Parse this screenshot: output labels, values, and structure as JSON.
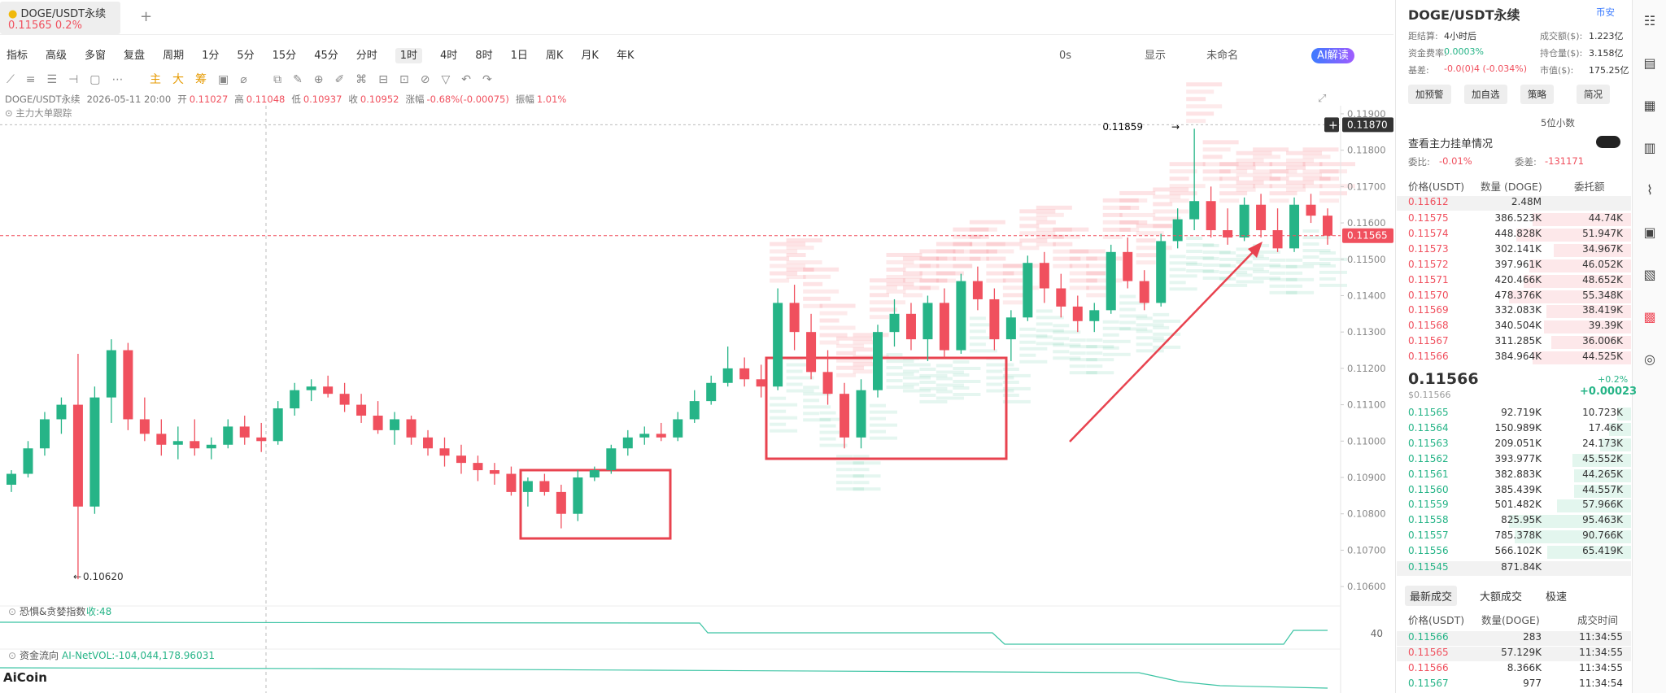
{
  "tab": {
    "title": "DOGE/USDT永续",
    "price": "0.11565",
    "change": "0.2%"
  },
  "toolbar": {
    "left": [
      "指标",
      "高级",
      "多窗",
      "复盘",
      "周期"
    ],
    "periods": [
      "1分",
      "5分",
      "15分",
      "45分",
      "分时",
      "1时",
      "4时",
      "8时",
      "1日",
      "周K",
      "月K",
      "年K"
    ],
    "active": "1时",
    "right": [
      "0s",
      "显示",
      "未命名",
      "AI解读"
    ]
  },
  "info": {
    "symbol": "DOGE/USDT永续",
    "time": "2026-05-11 20:00",
    "fields": [
      [
        "开",
        "0.11027"
      ],
      [
        "高",
        "0.11048"
      ],
      [
        "低",
        "0.10937"
      ],
      [
        "收",
        "0.10952"
      ],
      [
        "涨幅",
        "-0.68%(-0.00075)"
      ],
      [
        "振幅",
        "1.01%"
      ]
    ],
    "tracker": "主力大单跟踪"
  },
  "chart": {
    "type": "candlestick",
    "up_color": "#26b487",
    "down_color": "#f0505e",
    "ylim": [
      0.1056,
      0.1192
    ],
    "yticks": [
      {
        "value": 0.106,
        "label": "0.10600"
      },
      {
        "value": 0.107,
        "label": "0.10700"
      },
      {
        "value": 0.108,
        "label": "0.10800"
      },
      {
        "value": 0.109,
        "label": "0.10900"
      },
      {
        "value": 0.11,
        "label": "0.11000"
      },
      {
        "value": 0.111,
        "label": "0.11100"
      },
      {
        "value": 0.112,
        "label": "0.11200"
      },
      {
        "value": 0.113,
        "label": "0.11300"
      },
      {
        "value": 0.114,
        "label": "0.11400"
      },
      {
        "value": 0.115,
        "label": "0.11500"
      },
      {
        "value": 0.116,
        "label": "0.11600"
      },
      {
        "value": 0.117,
        "label": "0.11700"
      },
      {
        "value": 0.118,
        "label": "0.11800"
      },
      {
        "value": 0.119,
        "label": "0.11900"
      }
    ],
    "current_price": 0.11565,
    "crosshair": {
      "value": 0.1187,
      "label": "0.11870"
    },
    "low_mark": {
      "value": 0.1062,
      "label": "0.10620"
    },
    "candles": [
      [
        0.1088,
        0.1092,
        0.1086,
        0.1091
      ],
      [
        0.1091,
        0.11,
        0.109,
        0.1098
      ],
      [
        0.1098,
        0.1108,
        0.1096,
        0.1106
      ],
      [
        0.1106,
        0.1112,
        0.1102,
        0.111
      ],
      [
        0.111,
        0.1124,
        0.1062,
        0.1082
      ],
      [
        0.1082,
        0.1115,
        0.108,
        0.1112
      ],
      [
        0.1112,
        0.1128,
        0.1105,
        0.1125
      ],
      [
        0.1125,
        0.1127,
        0.1103,
        0.1106
      ],
      [
        0.1106,
        0.1112,
        0.11,
        0.1102
      ],
      [
        0.1102,
        0.1106,
        0.1096,
        0.1099
      ],
      [
        0.1099,
        0.1104,
        0.1095,
        0.11
      ],
      [
        0.11,
        0.1106,
        0.1096,
        0.1098
      ],
      [
        0.1098,
        0.1101,
        0.1095,
        0.1099
      ],
      [
        0.1099,
        0.1106,
        0.1098,
        0.1104
      ],
      [
        0.1104,
        0.1107,
        0.1099,
        0.1101
      ],
      [
        0.1101,
        0.1105,
        0.1097,
        0.11
      ],
      [
        0.11,
        0.1111,
        0.1099,
        0.1109
      ],
      [
        0.1109,
        0.1116,
        0.1107,
        0.1114
      ],
      [
        0.1114,
        0.1117,
        0.1111,
        0.1115
      ],
      [
        0.1115,
        0.1118,
        0.1112,
        0.1113
      ],
      [
        0.1113,
        0.1116,
        0.1108,
        0.111
      ],
      [
        0.111,
        0.1113,
        0.1105,
        0.1107
      ],
      [
        0.1107,
        0.1111,
        0.1102,
        0.1103
      ],
      [
        0.1103,
        0.1108,
        0.1099,
        0.1106
      ],
      [
        0.1106,
        0.1107,
        0.1099,
        0.1101
      ],
      [
        0.1101,
        0.1103,
        0.1096,
        0.1098
      ],
      [
        0.1098,
        0.1101,
        0.1093,
        0.1096
      ],
      [
        0.1096,
        0.1099,
        0.1091,
        0.1094
      ],
      [
        0.1094,
        0.1096,
        0.1089,
        0.1092
      ],
      [
        0.1092,
        0.1094,
        0.1088,
        0.1091
      ],
      [
        0.1091,
        0.1093,
        0.1085,
        0.1086
      ],
      [
        0.1086,
        0.109,
        0.1082,
        0.1089
      ],
      [
        0.1089,
        0.1091,
        0.1085,
        0.1086
      ],
      [
        0.1086,
        0.1088,
        0.1076,
        0.108
      ],
      [
        0.108,
        0.1092,
        0.1078,
        0.109
      ],
      [
        0.109,
        0.1093,
        0.1089,
        0.1092
      ],
      [
        0.1092,
        0.1099,
        0.1091,
        0.1098
      ],
      [
        0.1098,
        0.1103,
        0.1096,
        0.1101
      ],
      [
        0.1101,
        0.1104,
        0.1099,
        0.1102
      ],
      [
        0.1102,
        0.1105,
        0.11,
        0.1101
      ],
      [
        0.1101,
        0.1108,
        0.11,
        0.1106
      ],
      [
        0.1106,
        0.1114,
        0.1105,
        0.1111
      ],
      [
        0.1111,
        0.1118,
        0.111,
        0.1116
      ],
      [
        0.1116,
        0.1126,
        0.1115,
        0.112
      ],
      [
        0.112,
        0.1123,
        0.1115,
        0.1117
      ],
      [
        0.1117,
        0.1121,
        0.1112,
        0.1115
      ],
      [
        0.1115,
        0.1142,
        0.1114,
        0.1138
      ],
      [
        0.1138,
        0.1143,
        0.1125,
        0.113
      ],
      [
        0.113,
        0.1135,
        0.1117,
        0.1119
      ],
      [
        0.1119,
        0.1125,
        0.111,
        0.1113
      ],
      [
        0.1113,
        0.1116,
        0.1098,
        0.1101
      ],
      [
        0.1101,
        0.1117,
        0.1098,
        0.1114
      ],
      [
        0.1114,
        0.1132,
        0.1112,
        0.113
      ],
      [
        0.113,
        0.1139,
        0.1126,
        0.1135
      ],
      [
        0.1135,
        0.1138,
        0.1125,
        0.1128
      ],
      [
        0.1128,
        0.114,
        0.1122,
        0.1138
      ],
      [
        0.1138,
        0.1142,
        0.1123,
        0.1125
      ],
      [
        0.1125,
        0.1146,
        0.1124,
        0.1144
      ],
      [
        0.1144,
        0.1148,
        0.1136,
        0.1139
      ],
      [
        0.1139,
        0.1142,
        0.1125,
        0.1128
      ],
      [
        0.1128,
        0.1136,
        0.1122,
        0.1134
      ],
      [
        0.1134,
        0.1151,
        0.1133,
        0.1149
      ],
      [
        0.1149,
        0.1152,
        0.1138,
        0.1142
      ],
      [
        0.1142,
        0.1146,
        0.1134,
        0.1137
      ],
      [
        0.1137,
        0.114,
        0.113,
        0.1133
      ],
      [
        0.1133,
        0.1138,
        0.113,
        0.1136
      ],
      [
        0.1136,
        0.1154,
        0.1135,
        0.1152
      ],
      [
        0.1152,
        0.1156,
        0.1142,
        0.1144
      ],
      [
        0.1144,
        0.1147,
        0.1136,
        0.1138
      ],
      [
        0.1138,
        0.1157,
        0.1137,
        0.1155
      ],
      [
        0.1155,
        0.1164,
        0.1153,
        0.1161
      ],
      [
        0.1161,
        0.11859,
        0.1158,
        0.1166
      ],
      [
        0.1166,
        0.117,
        0.1156,
        0.1158
      ],
      [
        0.1158,
        0.1164,
        0.1154,
        0.1156
      ],
      [
        0.1156,
        0.1167,
        0.1155,
        0.1165
      ],
      [
        0.1165,
        0.1168,
        0.1156,
        0.1158
      ],
      [
        0.1158,
        0.1164,
        0.1152,
        0.1153
      ],
      [
        0.1153,
        0.1167,
        0.1152,
        0.1165
      ],
      [
        0.1165,
        0.1168,
        0.116,
        0.1162
      ],
      [
        0.1162,
        0.1164,
        0.1154,
        0.11565
      ]
    ]
  },
  "fear_greed": {
    "title": "恐惧&贪婪指数",
    "value": "收:48",
    "tick": "40"
  },
  "fund_flow": {
    "title": "资金流向",
    "value": "AI-NetVOL:-104,044,178.96031"
  },
  "brand": "AiCoin",
  "panel": {
    "title": "DOGE/USDT永续",
    "exchange": "币安",
    "stats": [
      [
        "距结算:",
        "4小时后",
        "成交额($):",
        "1.223亿"
      ],
      [
        "资金费率:",
        "0.0003%",
        "持仓量($):",
        "3.158亿"
      ],
      [
        "基差:",
        "-0.0(0)4 (-0.034%)",
        "市值($):",
        "175.25亿"
      ]
    ],
    "buttons": [
      "加预警",
      "加自选",
      "策略",
      "简况"
    ],
    "decimals": "5位小数",
    "depth_toggle": "查看主力挂单情况",
    "ratio_label": "委比:",
    "ratio": "-0.01%",
    "diff_label": "委差:",
    "diff": "-131171",
    "headers": [
      "价格(USDT)",
      "数量 (DOGE)",
      "委托额"
    ],
    "big_ask": [
      "0.11612",
      "2.48M"
    ],
    "asks": [
      [
        "0.11575",
        "386.523K",
        "44.74K"
      ],
      [
        "0.11574",
        "448.828K",
        "51.947K"
      ],
      [
        "0.11573",
        "302.141K",
        "34.967K"
      ],
      [
        "0.11572",
        "397.961K",
        "46.052K"
      ],
      [
        "0.11571",
        "420.466K",
        "48.652K"
      ],
      [
        "0.11570",
        "478.376K",
        "55.348K"
      ],
      [
        "0.11569",
        "332.083K",
        "38.419K"
      ],
      [
        "0.11568",
        "340.504K",
        "39.39K"
      ],
      [
        "0.11567",
        "311.285K",
        "36.006K"
      ],
      [
        "0.11566",
        "384.964K",
        "44.525K"
      ]
    ],
    "mid": "0.11566",
    "mid_usd": "$0.11566",
    "mid_pct": "+0.2%",
    "mid_chg": "+0.00023",
    "bids": [
      [
        "0.11565",
        "92.719K",
        "10.723K"
      ],
      [
        "0.11564",
        "150.989K",
        "17.46K"
      ],
      [
        "0.11563",
        "209.051K",
        "24.173K"
      ],
      [
        "0.11562",
        "393.977K",
        "45.552K"
      ],
      [
        "0.11561",
        "382.883K",
        "44.265K"
      ],
      [
        "0.11560",
        "385.439K",
        "44.557K"
      ],
      [
        "0.11559",
        "501.482K",
        "57.966K"
      ],
      [
        "0.11558",
        "825.95K",
        "95.463K"
      ],
      [
        "0.11557",
        "785.378K",
        "90.766K"
      ],
      [
        "0.11556",
        "566.102K",
        "65.419K"
      ]
    ],
    "big_bid": [
      "0.11545",
      "871.84K"
    ],
    "tabs": [
      "最新成交",
      "大额成交",
      "极速"
    ],
    "trade_headers": [
      "价格(USDT)",
      "数量(DOGE)",
      "成交时间"
    ],
    "trades": [
      [
        "0.11566",
        "283",
        "11:34:55"
      ],
      [
        "0.11565",
        "57.129K",
        "11:34:55"
      ],
      [
        "0.11566",
        "8.366K",
        "11:34:55"
      ],
      [
        "0.11567",
        "977",
        "11:34:54"
      ]
    ]
  }
}
